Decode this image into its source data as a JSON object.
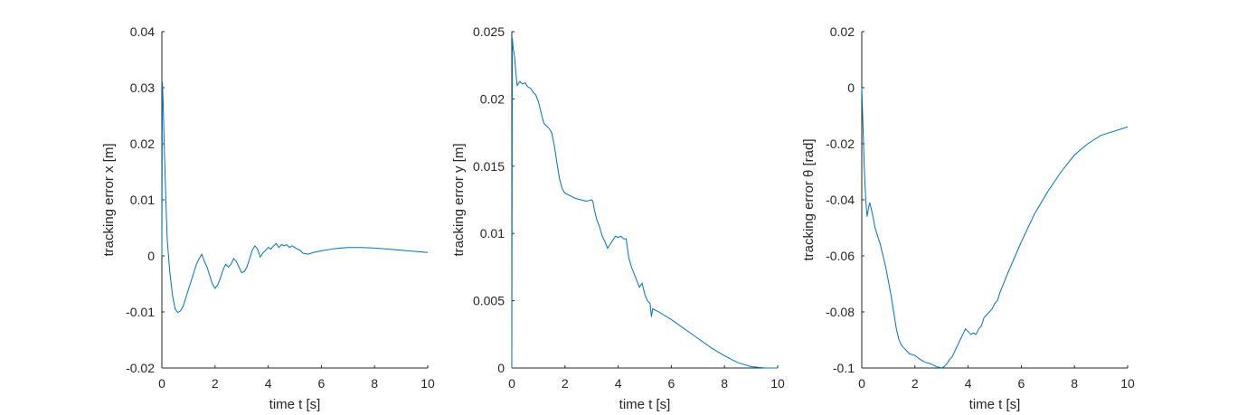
{
  "chart_data": [
    {
      "type": "line",
      "xlabel": "time t [s]",
      "ylabel": "tracking error x [m]",
      "xlim": [
        0,
        10
      ],
      "ylim": [
        -0.02,
        0.04
      ],
      "xticks": [
        "0",
        "2",
        "4",
        "6",
        "8",
        "10"
      ],
      "yticks": [
        "-0.02",
        "-0.01",
        "0",
        "0.01",
        "0.02",
        "0.03",
        "0.04"
      ],
      "series": [
        {
          "color": "#0072BD",
          "x": [
            0,
            0.02,
            0.05,
            0.1,
            0.15,
            0.2,
            0.3,
            0.4,
            0.5,
            0.6,
            0.7,
            0.8,
            0.9,
            1.0,
            1.1,
            1.2,
            1.3,
            1.4,
            1.5,
            1.6,
            1.7,
            1.8,
            1.9,
            2.0,
            2.1,
            2.2,
            2.3,
            2.4,
            2.5,
            2.6,
            2.7,
            2.8,
            2.9,
            3.0,
            3.1,
            3.2,
            3.3,
            3.4,
            3.5,
            3.6,
            3.7,
            3.8,
            3.9,
            4.0,
            4.1,
            4.2,
            4.3,
            4.4,
            4.5,
            4.6,
            4.7,
            4.8,
            4.9,
            5.0,
            5.1,
            5.2,
            5.3,
            5.5,
            5.7,
            6.0,
            6.5,
            7.0,
            7.5,
            8.0,
            8.5,
            9.0,
            9.5,
            10.0
          ],
          "y": [
            0.0,
            0.031,
            0.027,
            0.018,
            0.01,
            0.003,
            -0.003,
            -0.007,
            -0.0095,
            -0.0101,
            -0.0098,
            -0.009,
            -0.0075,
            -0.006,
            -0.0045,
            -0.003,
            -0.0015,
            -0.0005,
            0.0003,
            -0.001,
            -0.002,
            -0.0035,
            -0.005,
            -0.0058,
            -0.0052,
            -0.004,
            -0.0025,
            -0.0015,
            -0.002,
            -0.0015,
            -0.0005,
            -0.001,
            -0.002,
            -0.003,
            -0.0028,
            -0.002,
            -0.0005,
            0.001,
            0.0018,
            0.0012,
            -0.0002,
            0.0005,
            0.001,
            0.0015,
            0.0012,
            0.0018,
            0.0022,
            0.0015,
            0.002,
            0.0018,
            0.002,
            0.0015,
            0.0018,
            0.0015,
            0.0012,
            0.001,
            0.0005,
            0.0003,
            0.0006,
            0.0009,
            0.0013,
            0.0015,
            0.0015,
            0.0014,
            0.0012,
            0.001,
            0.0008,
            0.0006
          ]
        }
      ]
    },
    {
      "type": "line",
      "xlabel": "time t [s]",
      "ylabel": "tracking error y [m]",
      "xlim": [
        0,
        10
      ],
      "ylim": [
        0,
        0.025
      ],
      "xticks": [
        "0",
        "2",
        "4",
        "6",
        "8",
        "10"
      ],
      "yticks": [
        "0",
        "0.005",
        "0.01",
        "0.015",
        "0.02",
        "0.025"
      ],
      "series": [
        {
          "color": "#0072BD",
          "x": [
            0,
            0.02,
            0.05,
            0.1,
            0.15,
            0.2,
            0.3,
            0.4,
            0.5,
            0.6,
            0.7,
            0.8,
            0.9,
            1.0,
            1.1,
            1.2,
            1.3,
            1.4,
            1.5,
            1.6,
            1.7,
            1.8,
            1.9,
            2.0,
            2.2,
            2.4,
            2.6,
            2.8,
            3.0,
            3.05,
            3.1,
            3.2,
            3.3,
            3.4,
            3.5,
            3.6,
            3.7,
            3.8,
            3.9,
            4.0,
            4.1,
            4.2,
            4.3,
            4.4,
            4.5,
            4.6,
            4.7,
            4.8,
            4.9,
            5.0,
            5.1,
            5.2,
            5.25,
            5.3,
            5.5,
            6.0,
            6.5,
            7.0,
            7.5,
            8.0,
            8.5,
            9.0,
            9.5,
            10.0
          ],
          "y": [
            0.0,
            0.0245,
            0.0238,
            0.0232,
            0.022,
            0.021,
            0.0213,
            0.0211,
            0.0212,
            0.0209,
            0.0208,
            0.0205,
            0.0203,
            0.0198,
            0.019,
            0.0182,
            0.018,
            0.0178,
            0.0175,
            0.0165,
            0.0152,
            0.014,
            0.0133,
            0.013,
            0.0128,
            0.0126,
            0.0125,
            0.0124,
            0.0125,
            0.0124,
            0.0118,
            0.011,
            0.0105,
            0.0098,
            0.0094,
            0.0089,
            0.0092,
            0.0095,
            0.0098,
            0.0097,
            0.0098,
            0.0096,
            0.0096,
            0.0082,
            0.0075,
            0.007,
            0.0065,
            0.006,
            0.0063,
            0.0055,
            0.005,
            0.0048,
            0.0038,
            0.0044,
            0.0042,
            0.0036,
            0.0029,
            0.0022,
            0.0015,
            0.0009,
            0.0004,
            0.0001,
            0.0,
            0.0
          ]
        }
      ]
    },
    {
      "type": "line",
      "xlabel": "time t [s]",
      "ylabel": "tracking error θ [rad]",
      "xlim": [
        0,
        10
      ],
      "ylim": [
        -0.1,
        0.02
      ],
      "xticks": [
        "0",
        "2",
        "4",
        "6",
        "8",
        "10"
      ],
      "yticks": [
        "-0.1",
        "-0.08",
        "-0.06",
        "-0.04",
        "-0.02",
        "0",
        "0.02"
      ],
      "series": [
        {
          "color": "#0072BD",
          "x": [
            0,
            0.05,
            0.1,
            0.15,
            0.2,
            0.25,
            0.3,
            0.4,
            0.5,
            0.6,
            0.7,
            0.8,
            0.9,
            1.0,
            1.1,
            1.2,
            1.3,
            1.4,
            1.5,
            1.6,
            1.7,
            1.8,
            2.0,
            2.2,
            2.4,
            2.6,
            2.8,
            3.0,
            3.1,
            3.2,
            3.3,
            3.4,
            3.5,
            3.6,
            3.7,
            3.8,
            3.9,
            4.0,
            4.1,
            4.2,
            4.3,
            4.4,
            4.5,
            4.6,
            4.7,
            4.8,
            4.9,
            5.0,
            5.1,
            5.2,
            5.5,
            6.0,
            6.5,
            7.0,
            7.5,
            8.0,
            8.5,
            9.0,
            9.5,
            10.0
          ],
          "y": [
            0.0,
            -0.015,
            -0.03,
            -0.04,
            -0.046,
            -0.043,
            -0.041,
            -0.045,
            -0.05,
            -0.053,
            -0.056,
            -0.06,
            -0.064,
            -0.069,
            -0.074,
            -0.08,
            -0.086,
            -0.09,
            -0.092,
            -0.093,
            -0.094,
            -0.095,
            -0.0955,
            -0.097,
            -0.098,
            -0.0985,
            -0.0995,
            -0.1,
            -0.0995,
            -0.0985,
            -0.097,
            -0.096,
            -0.094,
            -0.092,
            -0.09,
            -0.088,
            -0.086,
            -0.087,
            -0.088,
            -0.0875,
            -0.088,
            -0.086,
            -0.085,
            -0.082,
            -0.081,
            -0.08,
            -0.079,
            -0.077,
            -0.076,
            -0.073,
            -0.066,
            -0.055,
            -0.045,
            -0.037,
            -0.03,
            -0.024,
            -0.02,
            -0.017,
            -0.0155,
            -0.014
          ]
        }
      ]
    }
  ]
}
